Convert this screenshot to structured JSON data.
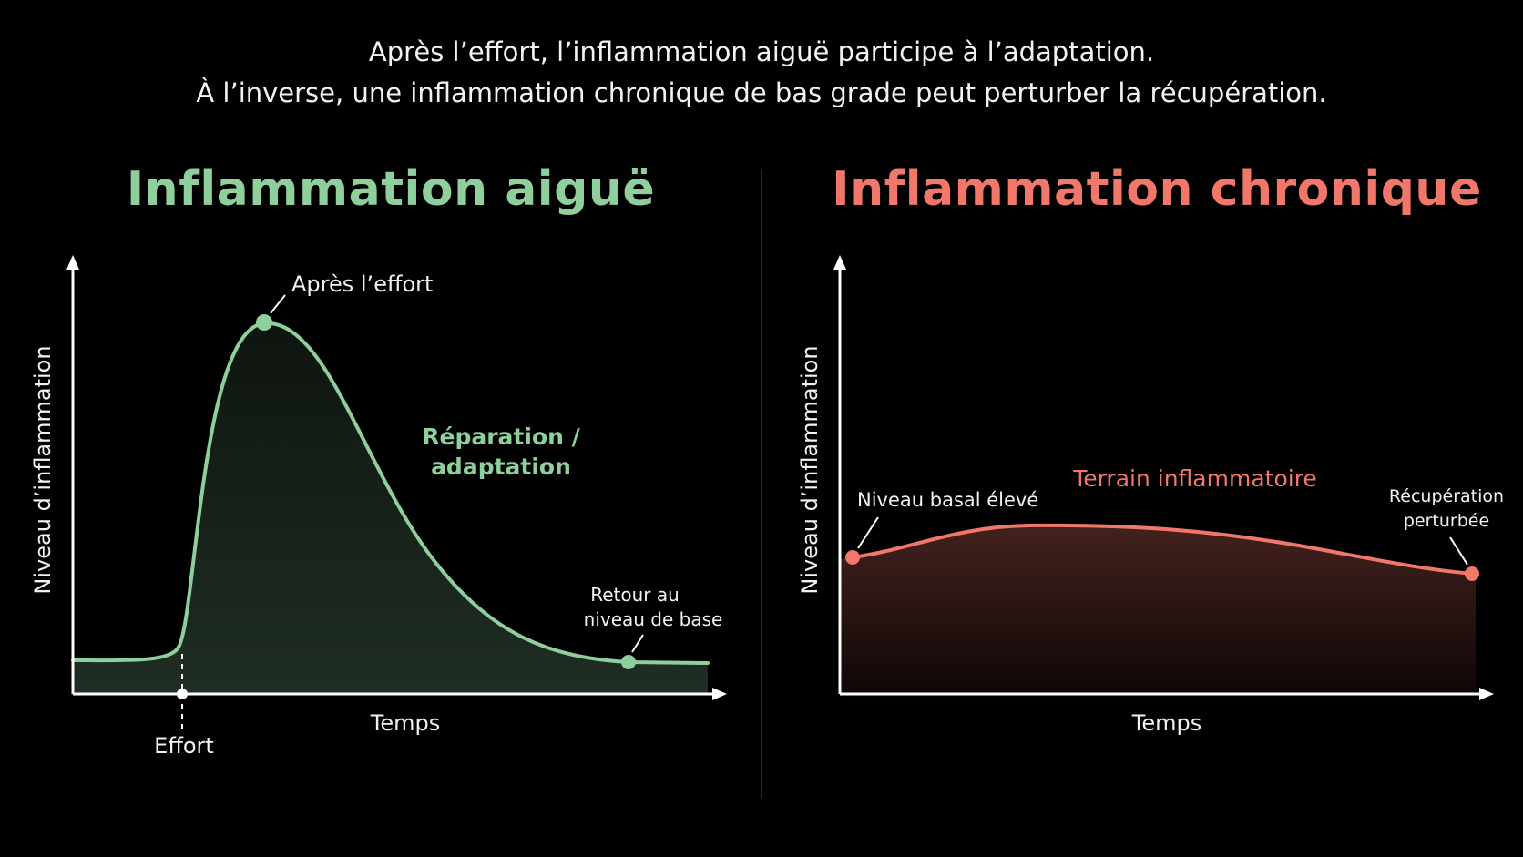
{
  "caption": {
    "line1": "Après l’effort, l’inflammation aiguë participe à l’adaptation.",
    "line2": "À l’inverse, une inflammation chronique de bas grade peut perturber la récupération."
  },
  "colors": {
    "background": "#000000",
    "acute": "#8fcf9c",
    "chronic": "#f0776a",
    "text": "#f2f2f2"
  },
  "acute_panel": {
    "title": "Inflammation aiguë",
    "y_axis_label": "Niveau d’inflammation",
    "x_axis_label": "Temps",
    "effort_label": "Effort",
    "peak_label": "Après l’effort",
    "phase_label_line1": "Réparation /",
    "phase_label_line2": "adaptation",
    "return_label_line1": "Retour au",
    "return_label_line2": "niveau de base"
  },
  "chronic_panel": {
    "title": "Inflammation chronique",
    "y_axis_label": "Niveau d’inflammation",
    "x_axis_label": "Temps",
    "zone_label": "Terrain inflammatoire",
    "start_label": "Niveau basal élevé",
    "end_label_line1": "Récupération",
    "end_label_line2": "perturbée"
  }
}
